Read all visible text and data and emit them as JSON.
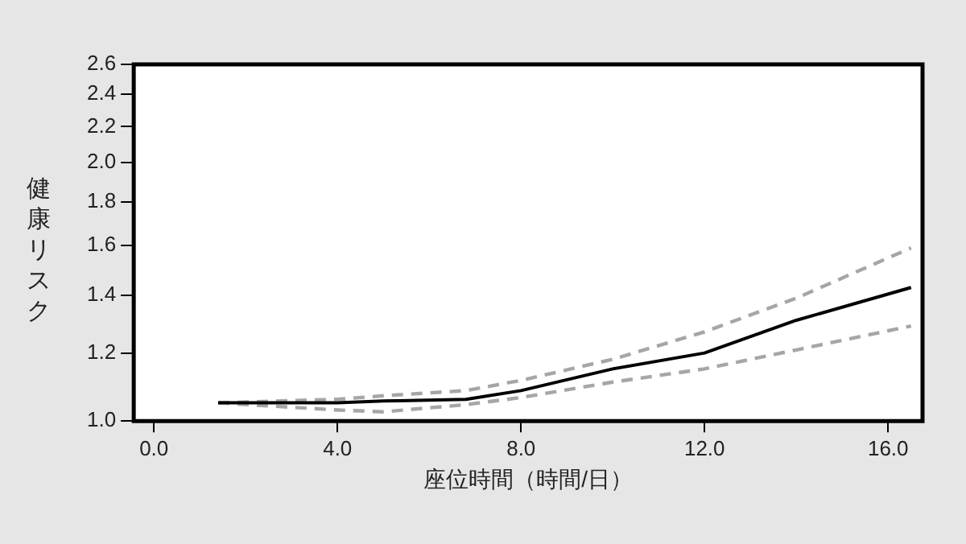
{
  "chart_data": {
    "type": "line",
    "xlabel": "座位時間（時間/日）",
    "ylabel": "健康リスク",
    "x": [
      1.4,
      4.0,
      5.0,
      6.8,
      8.0,
      10.0,
      12.0,
      14.0,
      16.5
    ],
    "series": [
      {
        "color": "#000000",
        "values": [
          1.05,
          1.05,
          1.055,
          1.06,
          1.085,
          1.15,
          1.2,
          1.31,
          1.43
        ],
        "line_style": "solid"
      },
      {
        "color": "#a6a6a6",
        "values": [
          1.05,
          1.06,
          1.07,
          1.085,
          1.115,
          1.18,
          1.27,
          1.39,
          1.59
        ],
        "line_style": "dashed"
      },
      {
        "color": "#a6a6a6",
        "values": [
          1.05,
          1.03,
          1.025,
          1.045,
          1.065,
          1.11,
          1.15,
          1.21,
          1.29
        ],
        "line_style": "dashed"
      }
    ],
    "log": "y",
    "xlim": [
      -0.44,
      16.75
    ],
    "xticks": [
      {
        "value": 0,
        "label": "0.0"
      },
      {
        "value": 4,
        "label": "4.0"
      },
      {
        "value": 8,
        "label": "8.0"
      },
      {
        "value": 12,
        "label": "12.0"
      },
      {
        "value": 16,
        "label": "16.0"
      }
    ],
    "ylim": [
      1.0,
      2.6
    ],
    "yticks": [
      {
        "value": 1,
        "label": "1.0"
      },
      {
        "value": 1.2,
        "label": "1.2"
      },
      {
        "value": 1.4,
        "label": "1.4"
      },
      {
        "value": 1.6,
        "label": "1.6"
      },
      {
        "value": 1.8,
        "label": "1.8"
      },
      {
        "value": 2.0,
        "label": "2.0"
      },
      {
        "value": 2.2,
        "label": "2.2"
      },
      {
        "value": 2.4,
        "label": "2.4"
      },
      {
        "value": 2.6,
        "label": "2.6"
      }
    ],
    "grid": false,
    "legend": false,
    "marker": "none"
  }
}
